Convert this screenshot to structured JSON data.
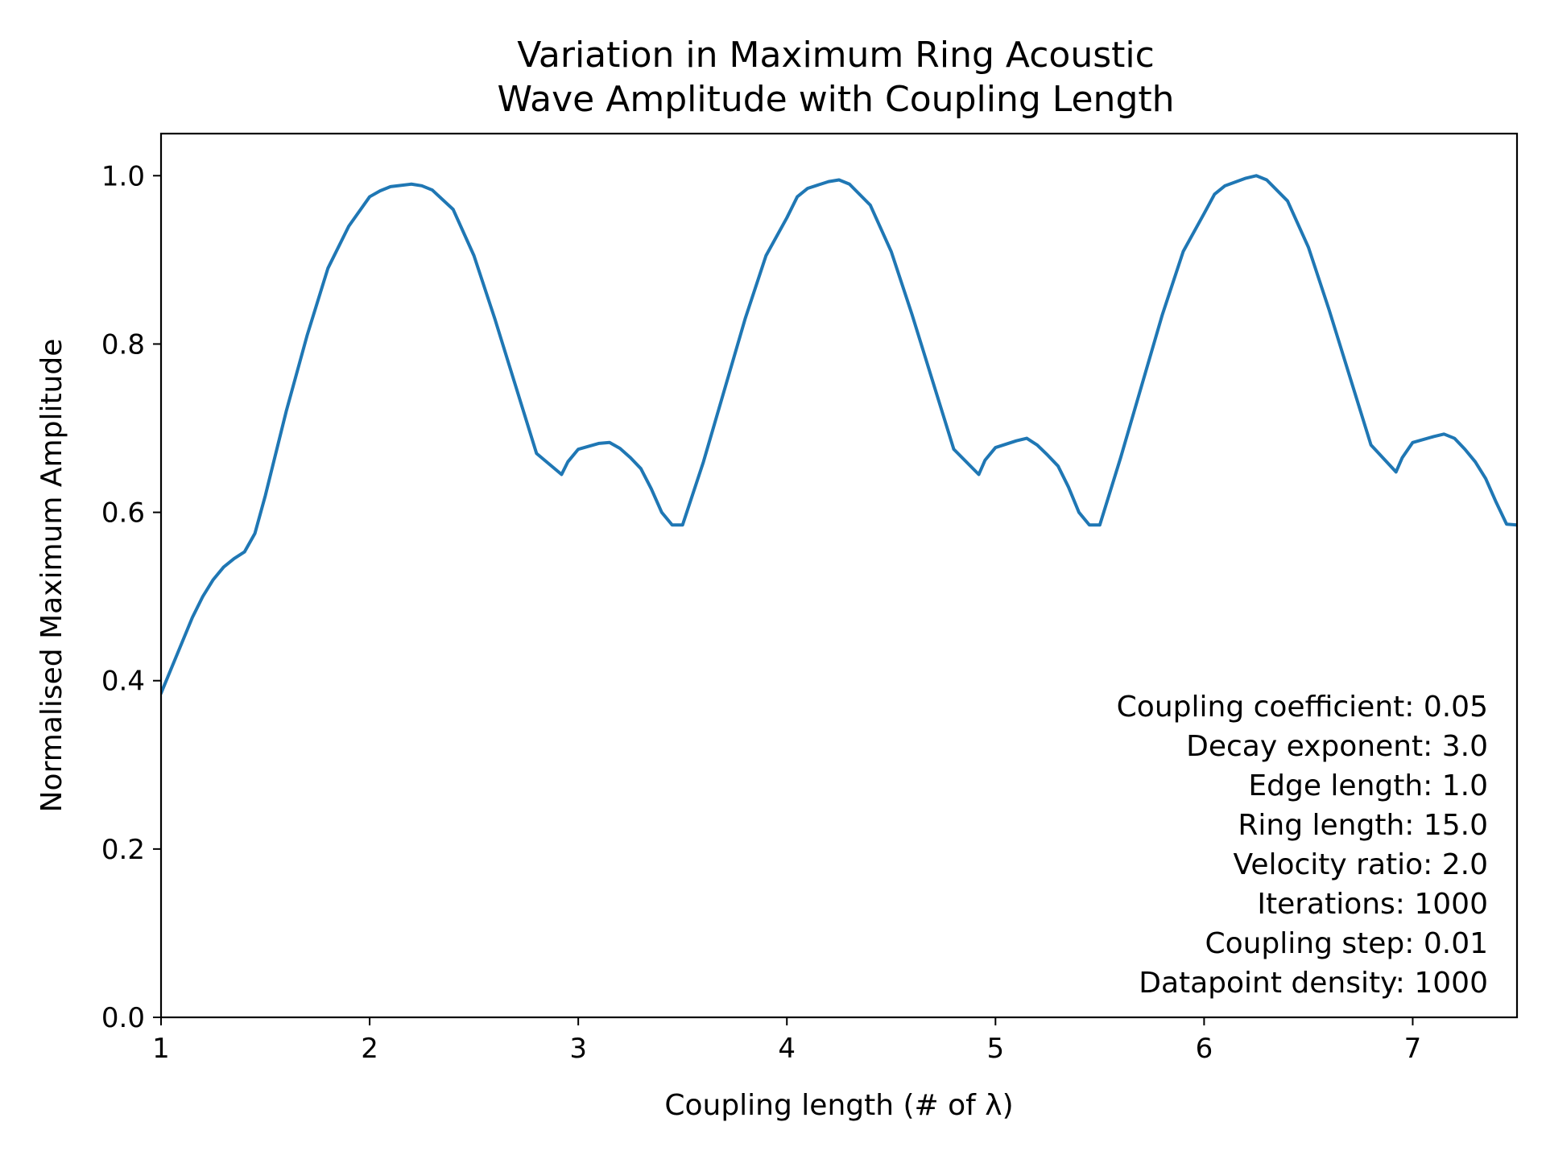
{
  "chart_data": {
    "type": "line",
    "title_lines": [
      "Variation in Maximum Ring Acoustic",
      "Wave Amplitude with Coupling Length"
    ],
    "xlabel": "Coupling length (# of λ)",
    "ylabel": "Normalised Maximum Amplitude",
    "xlim": [
      1,
      7.5
    ],
    "ylim": [
      0,
      1.05
    ],
    "x_ticks": [
      1,
      2,
      3,
      4,
      5,
      6,
      7
    ],
    "y_ticks": [
      0.0,
      0.2,
      0.4,
      0.6,
      0.8,
      1.0
    ],
    "x_tick_labels": [
      "1",
      "2",
      "3",
      "4",
      "5",
      "6",
      "7"
    ],
    "y_tick_labels": [
      "0.0",
      "0.2",
      "0.4",
      "0.6",
      "0.8",
      "1.0"
    ],
    "line_color": "#1f77b4",
    "grid": false,
    "annotation_lines": [
      "Coupling coefficient: 0.05",
      "Decay exponent: 3.0",
      "Edge length: 1.0",
      "Ring length: 15.0",
      "Velocity ratio: 2.0",
      "Iterations: 1000",
      "Coupling step: 0.01",
      "Datapoint density: 1000"
    ],
    "annotation_placement": "bottom-right",
    "series": [
      {
        "x": [
          1.0,
          1.05,
          1.1,
          1.15,
          1.2,
          1.25,
          1.3,
          1.35,
          1.4,
          1.45,
          1.5,
          1.55,
          1.6,
          1.7,
          1.8,
          1.9,
          2.0,
          2.05,
          2.1,
          2.2,
          2.25,
          2.3,
          2.4,
          2.5,
          2.6,
          2.7,
          2.8,
          2.92,
          2.95,
          3.0,
          3.1,
          3.15,
          3.2,
          3.25,
          3.3,
          3.35,
          3.4,
          3.45,
          3.5,
          3.6,
          3.7,
          3.8,
          3.9,
          4.0,
          4.05,
          4.1,
          4.2,
          4.25,
          4.3,
          4.4,
          4.5,
          4.6,
          4.7,
          4.8,
          4.92,
          4.95,
          5.0,
          5.1,
          5.15,
          5.2,
          5.25,
          5.3,
          5.35,
          5.4,
          5.45,
          5.5,
          5.6,
          5.7,
          5.8,
          5.9,
          6.0,
          6.05,
          6.1,
          6.2,
          6.25,
          6.3,
          6.4,
          6.5,
          6.6,
          6.7,
          6.8,
          6.92,
          6.95,
          7.0,
          7.1,
          7.15,
          7.2,
          7.25,
          7.3,
          7.35,
          7.4,
          7.45,
          7.5
        ],
        "y": [
          0.385,
          0.415,
          0.445,
          0.475,
          0.5,
          0.52,
          0.535,
          0.545,
          0.553,
          0.575,
          0.62,
          0.67,
          0.72,
          0.81,
          0.89,
          0.94,
          0.975,
          0.982,
          0.987,
          0.99,
          0.988,
          0.983,
          0.96,
          0.905,
          0.83,
          0.75,
          0.67,
          0.645,
          0.66,
          0.675,
          0.682,
          0.683,
          0.676,
          0.665,
          0.652,
          0.628,
          0.6,
          0.585,
          0.585,
          0.66,
          0.745,
          0.83,
          0.905,
          0.95,
          0.975,
          0.985,
          0.993,
          0.995,
          0.99,
          0.965,
          0.91,
          0.835,
          0.755,
          0.675,
          0.645,
          0.662,
          0.677,
          0.685,
          0.688,
          0.68,
          0.668,
          0.655,
          0.63,
          0.6,
          0.585,
          0.585,
          0.665,
          0.75,
          0.835,
          0.91,
          0.955,
          0.978,
          0.988,
          0.997,
          1.0,
          0.995,
          0.97,
          0.915,
          0.84,
          0.76,
          0.68,
          0.648,
          0.665,
          0.683,
          0.69,
          0.693,
          0.688,
          0.675,
          0.66,
          0.64,
          0.612,
          0.586,
          0.585
        ]
      }
    ]
  }
}
